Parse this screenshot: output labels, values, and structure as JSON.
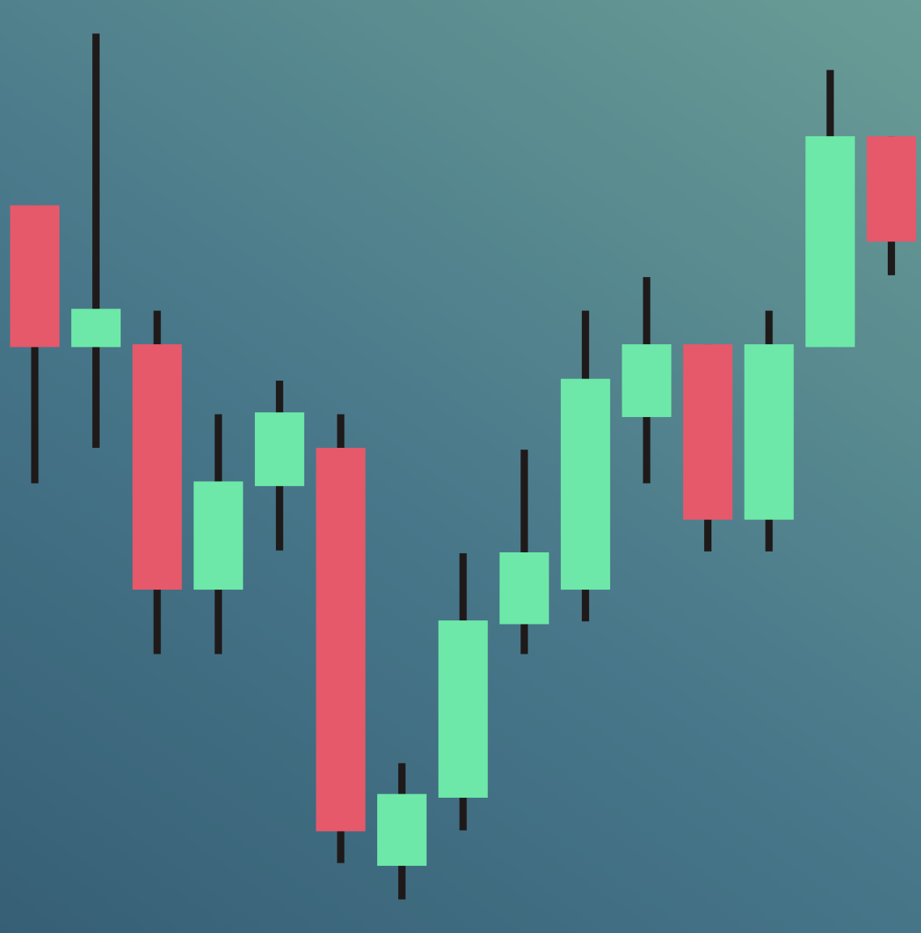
{
  "chart_data": {
    "type": "candlestick",
    "title": "",
    "xlabel": "",
    "ylabel": "",
    "ylim": [
      0,
      100
    ],
    "grid": false,
    "axes_visible": false,
    "colors": {
      "up": "#6de8a8",
      "down": "#e5596b",
      "wick": "#1f1a1a",
      "background_start": "#365f75",
      "background_end": "#6a9c96"
    },
    "candles": [
      {
        "open": 78.0,
        "close": 62.8,
        "high": 78.0,
        "low": 48.2
      },
      {
        "open": 62.8,
        "close": 66.9,
        "high": 96.4,
        "low": 52.0
      },
      {
        "open": 63.1,
        "close": 36.8,
        "high": 66.7,
        "low": 29.9
      },
      {
        "open": 36.8,
        "close": 48.4,
        "high": 55.6,
        "low": 29.9
      },
      {
        "open": 47.9,
        "close": 55.8,
        "high": 59.2,
        "low": 41.0
      },
      {
        "open": 52.0,
        "close": 10.9,
        "high": 55.6,
        "low": 7.5
      },
      {
        "open": 7.2,
        "close": 14.9,
        "high": 18.2,
        "low": 3.6
      },
      {
        "open": 14.5,
        "close": 33.5,
        "high": 40.7,
        "low": 11.0
      },
      {
        "open": 33.1,
        "close": 40.8,
        "high": 51.8,
        "low": 29.9
      },
      {
        "open": 36.8,
        "close": 59.4,
        "high": 66.7,
        "low": 33.4
      },
      {
        "open": 55.3,
        "close": 63.1,
        "high": 70.3,
        "low": 48.2
      },
      {
        "open": 63.1,
        "close": 44.3,
        "high": 63.1,
        "low": 40.9
      },
      {
        "open": 44.3,
        "close": 63.1,
        "high": 66.7,
        "low": 40.9
      },
      {
        "open": 62.8,
        "close": 85.4,
        "high": 92.5,
        "low": 62.8
      },
      {
        "open": 85.4,
        "close": 74.1,
        "high": 85.4,
        "low": 70.5
      }
    ]
  }
}
